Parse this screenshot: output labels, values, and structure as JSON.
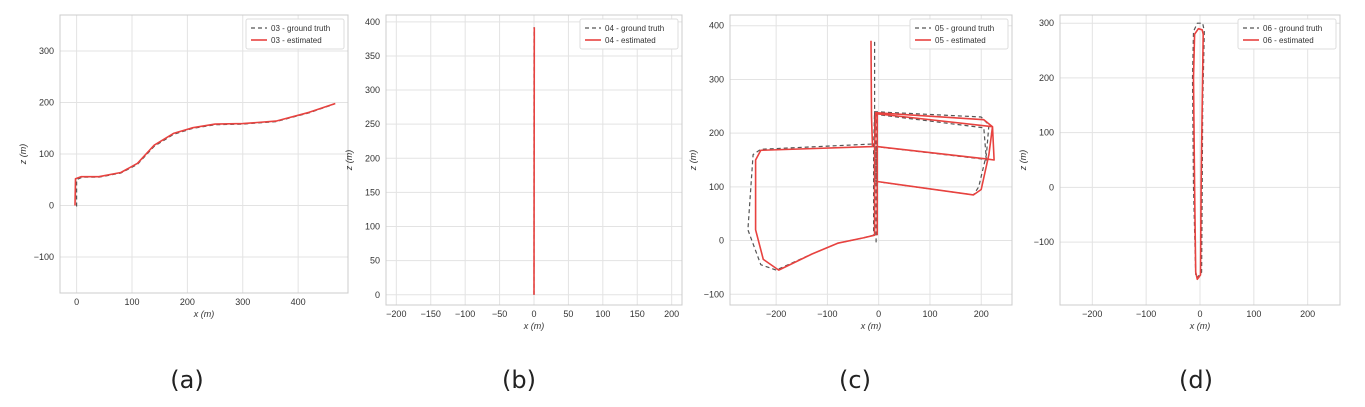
{
  "panels": [
    "(a)",
    "(b)",
    "(c)",
    "(d)"
  ],
  "colors": {
    "ground_truth": "#555555",
    "estimated": "#e8423f",
    "grid": "#e3e3e3",
    "frame": "#cccccc"
  },
  "chart_data": [
    {
      "type": "line",
      "xlabel": "x (m)",
      "ylabel": "z (m)",
      "xlim": [
        -30,
        490
      ],
      "ylim": [
        -170,
        370
      ],
      "xticks": [
        0,
        100,
        200,
        300,
        400
      ],
      "yticks": [
        -100,
        0,
        100,
        200,
        300
      ],
      "grid": true,
      "legend": "top-right",
      "series": [
        {
          "name": "03 - ground truth",
          "style": "dashed",
          "points": [
            [
              0,
              -2
            ],
            [
              0,
              50
            ],
            [
              10,
              55
            ],
            [
              40,
              55
            ],
            [
              80,
              63
            ],
            [
              110,
              80
            ],
            [
              140,
              115
            ],
            [
              175,
              138
            ],
            [
              210,
              150
            ],
            [
              250,
              157
            ],
            [
              300,
              158
            ],
            [
              360,
              163
            ],
            [
              420,
              180
            ],
            [
              465,
              197
            ]
          ]
        },
        {
          "name": "03 - estimated",
          "style": "solid",
          "points": [
            [
              -3,
              0
            ],
            [
              -2,
              52
            ],
            [
              8,
              56
            ],
            [
              40,
              56
            ],
            [
              80,
              64
            ],
            [
              110,
              82
            ],
            [
              140,
              117
            ],
            [
              175,
              140
            ],
            [
              210,
              151
            ],
            [
              250,
              158
            ],
            [
              300,
              159
            ],
            [
              360,
              164
            ],
            [
              420,
              181
            ],
            [
              467,
              198
            ]
          ]
        }
      ]
    },
    {
      "type": "line",
      "xlabel": "x (m)",
      "ylabel": "z (m)",
      "xlim": [
        -215,
        215
      ],
      "ylim": [
        -15,
        410
      ],
      "xticks": [
        -200,
        -150,
        -100,
        -50,
        0,
        50,
        100,
        150,
        200
      ],
      "yticks": [
        0,
        50,
        100,
        150,
        200,
        250,
        300,
        350,
        400
      ],
      "grid": true,
      "legend": "top-right",
      "series": [
        {
          "name": "04 - ground truth",
          "style": "dashed",
          "points": [
            [
              0,
              0
            ],
            [
              0,
              392
            ]
          ]
        },
        {
          "name": "04 - estimated",
          "style": "solid",
          "points": [
            [
              0,
              0
            ],
            [
              0.5,
              392
            ]
          ]
        }
      ]
    },
    {
      "type": "line",
      "xlabel": "x (m)",
      "ylabel": "z (m)",
      "xlim": [
        -290,
        260
      ],
      "ylim": [
        -120,
        420
      ],
      "xticks": [
        -200,
        -100,
        0,
        100,
        200
      ],
      "yticks": [
        -100,
        0,
        100,
        200,
        300,
        400
      ],
      "grid": true,
      "legend": "top-right",
      "series": [
        {
          "name": "05 - ground truth",
          "style": "dashed",
          "points": [
            [
              -8,
              370
            ],
            [
              -8,
              180
            ],
            [
              -230,
              170
            ],
            [
              -245,
              160
            ],
            [
              -255,
              20
            ],
            [
              -230,
              -45
            ],
            [
              -200,
              -55
            ],
            [
              -130,
              -25
            ],
            [
              -80,
              -5
            ],
            [
              -30,
              5
            ],
            [
              -10,
              10
            ],
            [
              -10,
              175
            ],
            [
              -8,
              240
            ],
            [
              200,
              230
            ],
            [
              215,
              215
            ],
            [
              210,
              160
            ],
            [
              195,
              100
            ],
            [
              185,
              85
            ],
            [
              -5,
              110
            ],
            [
              -5,
              175
            ],
            [
              200,
              152
            ],
            [
              210,
              150
            ],
            [
              205,
              210
            ],
            [
              -5,
              235
            ],
            [
              -5,
              -5
            ]
          ]
        },
        {
          "name": "05 - estimated",
          "style": "solid",
          "points": [
            [
              -15,
              372
            ],
            [
              -14,
              230
            ],
            [
              -12,
              175
            ],
            [
              -230,
              168
            ],
            [
              -240,
              150
            ],
            [
              -240,
              20
            ],
            [
              -225,
              -35
            ],
            [
              -195,
              -55
            ],
            [
              -130,
              -25
            ],
            [
              -80,
              -5
            ],
            [
              -30,
              5
            ],
            [
              -8,
              10
            ],
            [
              -8,
              175
            ],
            [
              -6,
              238
            ],
            [
              205,
              225
            ],
            [
              222,
              212
            ],
            [
              215,
              160
            ],
            [
              200,
              95
            ],
            [
              185,
              85
            ],
            [
              -3,
              110
            ],
            [
              -3,
              175
            ],
            [
              210,
              152
            ],
            [
              225,
              150
            ],
            [
              222,
              212
            ],
            [
              -3,
              236
            ],
            [
              -3,
              10
            ]
          ]
        }
      ]
    },
    {
      "type": "line",
      "xlabel": "x (m)",
      "ylabel": "z (m)",
      "xlim": [
        -260,
        260
      ],
      "ylim": [
        -215,
        315
      ],
      "xticks": [
        -200,
        -100,
        0,
        100,
        200
      ],
      "yticks": [
        -100,
        0,
        100,
        200,
        300
      ],
      "grid": true,
      "legend": "top-right",
      "series": [
        {
          "name": "06 - ground truth",
          "style": "dashed",
          "points": [
            [
              -8,
              -160
            ],
            [
              -12,
              0
            ],
            [
              -14,
              200
            ],
            [
              -12,
              285
            ],
            [
              -5,
              300
            ],
            [
              5,
              300
            ],
            [
              8,
              285
            ],
            [
              5,
              150
            ],
            [
              4,
              0
            ],
            [
              3,
              -155
            ],
            [
              -5,
              -165
            ],
            [
              -8,
              -160
            ]
          ]
        },
        {
          "name": "06 - estimated",
          "style": "solid",
          "points": [
            [
              -8,
              -155
            ],
            [
              -10,
              0
            ],
            [
              -12,
              200
            ],
            [
              -10,
              280
            ],
            [
              -3,
              290
            ],
            [
              4,
              288
            ],
            [
              6,
              280
            ],
            [
              4,
              150
            ],
            [
              2,
              0
            ],
            [
              1,
              -160
            ],
            [
              -5,
              -168
            ],
            [
              -8,
              -155
            ]
          ]
        }
      ]
    }
  ]
}
